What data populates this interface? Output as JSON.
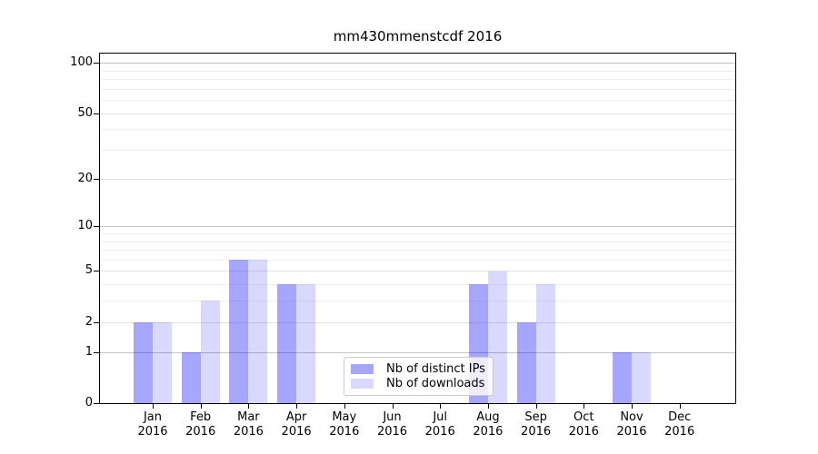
{
  "title": "mm430mmenstcdf 2016",
  "chart_data": {
    "type": "bar",
    "title": "mm430mmenstcdf 2016",
    "categories": [
      "Jan 2016",
      "Feb 2016",
      "Mar 2016",
      "Apr 2016",
      "May 2016",
      "Jun 2016",
      "Jul 2016",
      "Aug 2016",
      "Sep 2016",
      "Oct 2016",
      "Nov 2016",
      "Dec 2016"
    ],
    "series": [
      {
        "name": "Nb of distinct IPs",
        "color": "rgba(0,0,255,0.35)",
        "color_hex": "#a6a6ff",
        "values": [
          2,
          1,
          6,
          4,
          0,
          0,
          0,
          4,
          2,
          0,
          1,
          0
        ]
      },
      {
        "name": "Nb of downloads",
        "color": "rgba(0,0,255,0.15)",
        "color_hex": "#d9d9ff",
        "values": [
          2,
          3,
          6,
          4,
          0,
          0,
          0,
          5,
          4,
          0,
          1,
          0
        ]
      }
    ],
    "xlabel": "",
    "ylabel": "",
    "yscale": "log1p",
    "ylim": [
      0,
      115
    ],
    "yticks_labeled": [
      0,
      1,
      2,
      5,
      10,
      20,
      50,
      100
    ],
    "yticks_minor": [
      3,
      4,
      6,
      7,
      8,
      9,
      30,
      40,
      60,
      70,
      80,
      90
    ],
    "grid": "horizontal",
    "legend_position": "inside-lower-center"
  }
}
